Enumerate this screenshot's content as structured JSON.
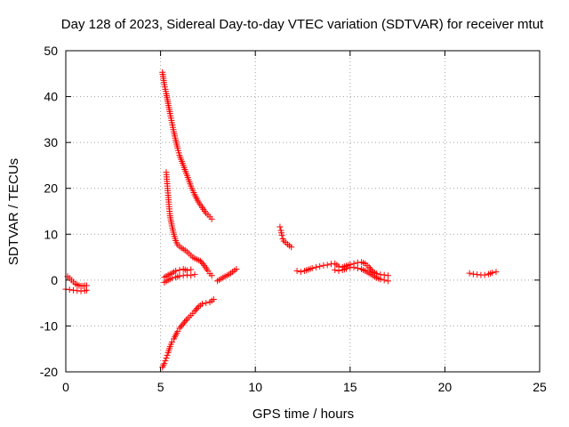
{
  "chart_data": {
    "type": "scatter",
    "title": "Day 128 of 2023, Sidereal Day-to-day VTEC variation (SDTVAR) for receiver mtut",
    "xlabel": "GPS time / hours",
    "ylabel": "SDTVAR / TECUs",
    "xlim": [
      0,
      25
    ],
    "ylim": [
      -20,
      50
    ],
    "xticks": [
      0,
      5,
      10,
      15,
      20,
      25
    ],
    "yticks": [
      -20,
      -10,
      0,
      10,
      20,
      30,
      40,
      50
    ],
    "xtick_labels": [
      "0",
      "5",
      "10",
      "15",
      "20",
      "25"
    ],
    "ytick_labels": [
      "-20",
      "-10",
      "0",
      "10",
      "20",
      "30",
      "40",
      "50"
    ],
    "grid": true,
    "marker": "plus",
    "series": [
      {
        "name": "segment-a",
        "color": "#ff0000",
        "points": [
          [
            0.1,
            0.8
          ],
          [
            0.2,
            0.4
          ],
          [
            0.3,
            0.0
          ],
          [
            0.4,
            -0.4
          ],
          [
            0.5,
            -0.8
          ],
          [
            0.6,
            -1.0
          ],
          [
            0.7,
            -1.2
          ],
          [
            0.8,
            -1.3
          ],
          [
            0.9,
            -1.3
          ],
          [
            1.0,
            -1.2
          ],
          [
            1.1,
            -1.2
          ]
        ]
      },
      {
        "name": "segment-b",
        "color": "#ff0000",
        "points": [
          [
            0.0,
            -2.0
          ],
          [
            0.2,
            -2.1
          ],
          [
            0.4,
            -2.2
          ],
          [
            0.6,
            -2.3
          ],
          [
            0.8,
            -2.4
          ],
          [
            1.0,
            -2.3
          ],
          [
            1.1,
            -2.2
          ]
        ]
      },
      {
        "name": "segment-c",
        "color": "#ff0000",
        "points": [
          [
            5.1,
            45.3
          ],
          [
            5.15,
            44.0
          ],
          [
            5.2,
            42.6
          ],
          [
            5.3,
            40.6
          ],
          [
            5.4,
            38.5
          ],
          [
            5.5,
            36.3
          ],
          [
            5.6,
            34.3
          ],
          [
            5.7,
            32.3
          ],
          [
            5.8,
            30.5
          ],
          [
            5.9,
            28.8
          ],
          [
            6.0,
            27.2
          ],
          [
            6.2,
            25.0
          ],
          [
            6.4,
            22.8
          ],
          [
            6.6,
            20.5
          ],
          [
            6.8,
            18.6
          ],
          [
            7.0,
            17.0
          ],
          [
            7.2,
            15.8
          ],
          [
            7.4,
            14.6
          ],
          [
            7.6,
            13.8
          ],
          [
            7.7,
            13.3
          ]
        ]
      },
      {
        "name": "segment-d",
        "color": "#ff0000",
        "points": [
          [
            5.3,
            23.5
          ],
          [
            5.35,
            21.0
          ],
          [
            5.4,
            18.5
          ],
          [
            5.45,
            16.0
          ],
          [
            5.5,
            14.0
          ],
          [
            5.6,
            11.8
          ],
          [
            5.7,
            10.0
          ],
          [
            5.8,
            8.6
          ],
          [
            5.9,
            7.7
          ],
          [
            6.1,
            7.0
          ],
          [
            6.3,
            6.5
          ],
          [
            6.5,
            5.8
          ],
          [
            6.7,
            5.0
          ],
          [
            6.9,
            4.5
          ],
          [
            7.1,
            4.2
          ],
          [
            7.3,
            3.2
          ],
          [
            7.5,
            2.0
          ],
          [
            7.6,
            1.4
          ],
          [
            7.7,
            1.0
          ]
        ]
      },
      {
        "name": "segment-e",
        "color": "#ff0000",
        "points": [
          [
            5.1,
            -19.0
          ],
          [
            5.2,
            -18.2
          ],
          [
            5.3,
            -17.0
          ],
          [
            5.4,
            -15.8
          ],
          [
            5.5,
            -14.5
          ],
          [
            5.6,
            -13.5
          ],
          [
            5.7,
            -12.8
          ],
          [
            5.8,
            -12.0
          ],
          [
            5.9,
            -11.2
          ],
          [
            6.0,
            -10.5
          ],
          [
            6.2,
            -9.5
          ],
          [
            6.4,
            -8.5
          ],
          [
            6.6,
            -7.7
          ],
          [
            6.8,
            -6.8
          ],
          [
            7.0,
            -5.8
          ],
          [
            7.2,
            -5.2
          ],
          [
            7.4,
            -5.0
          ],
          [
            7.6,
            -4.8
          ],
          [
            7.8,
            -4.2
          ]
        ]
      },
      {
        "name": "segment-f",
        "color": "#ff0000",
        "points": [
          [
            5.2,
            -0.5
          ],
          [
            5.4,
            0.0
          ],
          [
            5.6,
            0.4
          ],
          [
            5.8,
            0.6
          ],
          [
            6.0,
            0.9
          ],
          [
            6.2,
            1.0
          ],
          [
            6.4,
            1.1
          ],
          [
            6.6,
            1.0
          ],
          [
            6.8,
            1.2
          ]
        ]
      },
      {
        "name": "segment-g",
        "color": "#ff0000",
        "points": [
          [
            5.2,
            0.6
          ],
          [
            5.4,
            1.1
          ],
          [
            5.6,
            1.5
          ],
          [
            5.8,
            2.0
          ],
          [
            6.0,
            2.2
          ],
          [
            6.2,
            2.4
          ],
          [
            6.4,
            2.1
          ],
          [
            6.6,
            2.3
          ]
        ]
      },
      {
        "name": "segment-h",
        "color": "#ff0000",
        "points": [
          [
            8.0,
            -0.2
          ],
          [
            8.2,
            0.3
          ],
          [
            8.4,
            0.8
          ],
          [
            8.6,
            1.2
          ],
          [
            8.8,
            1.8
          ],
          [
            9.0,
            2.4
          ]
        ]
      },
      {
        "name": "segment-i",
        "color": "#ff0000",
        "points": [
          [
            11.3,
            11.6
          ],
          [
            11.35,
            10.8
          ],
          [
            11.4,
            9.8
          ],
          [
            11.45,
            9.0
          ],
          [
            11.5,
            8.5
          ],
          [
            11.6,
            8.2
          ],
          [
            11.7,
            7.8
          ],
          [
            11.8,
            7.5
          ],
          [
            11.9,
            7.2
          ]
        ]
      },
      {
        "name": "segment-j",
        "color": "#ff0000",
        "points": [
          [
            12.2,
            2.0
          ],
          [
            12.4,
            1.8
          ],
          [
            12.6,
            2.0
          ],
          [
            12.8,
            2.3
          ],
          [
            13.0,
            2.6
          ],
          [
            13.2,
            2.8
          ],
          [
            13.4,
            3.0
          ],
          [
            13.6,
            3.2
          ],
          [
            13.8,
            3.3
          ],
          [
            14.0,
            3.5
          ],
          [
            14.2,
            3.6
          ],
          [
            14.4,
            3.0
          ],
          [
            14.6,
            2.8
          ],
          [
            14.8,
            3.1
          ],
          [
            15.0,
            3.4
          ],
          [
            15.2,
            3.6
          ],
          [
            15.4,
            3.8
          ],
          [
            15.6,
            3.9
          ],
          [
            15.8,
            3.6
          ],
          [
            16.0,
            2.8
          ],
          [
            16.2,
            1.8
          ],
          [
            16.4,
            1.4
          ],
          [
            16.6,
            1.2
          ],
          [
            16.8,
            1.1
          ],
          [
            17.0,
            1.0
          ]
        ]
      },
      {
        "name": "segment-k",
        "color": "#ff0000",
        "points": [
          [
            14.2,
            2.2
          ],
          [
            14.4,
            2.0
          ],
          [
            14.6,
            2.2
          ],
          [
            14.8,
            2.5
          ],
          [
            15.0,
            2.7
          ],
          [
            15.2,
            2.8
          ],
          [
            15.4,
            2.6
          ],
          [
            15.6,
            2.4
          ],
          [
            15.8,
            2.0
          ],
          [
            16.0,
            1.5
          ],
          [
            16.2,
            1.0
          ],
          [
            16.4,
            0.5
          ],
          [
            16.6,
            0.2
          ],
          [
            16.8,
            0.0
          ],
          [
            17.0,
            -0.2
          ]
        ]
      },
      {
        "name": "segment-l",
        "color": "#ff0000",
        "points": [
          [
            21.3,
            1.5
          ],
          [
            21.5,
            1.3
          ],
          [
            21.7,
            1.2
          ],
          [
            21.9,
            1.1
          ],
          [
            22.1,
            1.1
          ],
          [
            22.3,
            1.3
          ],
          [
            22.5,
            1.6
          ],
          [
            22.7,
            1.8
          ]
        ]
      }
    ]
  }
}
